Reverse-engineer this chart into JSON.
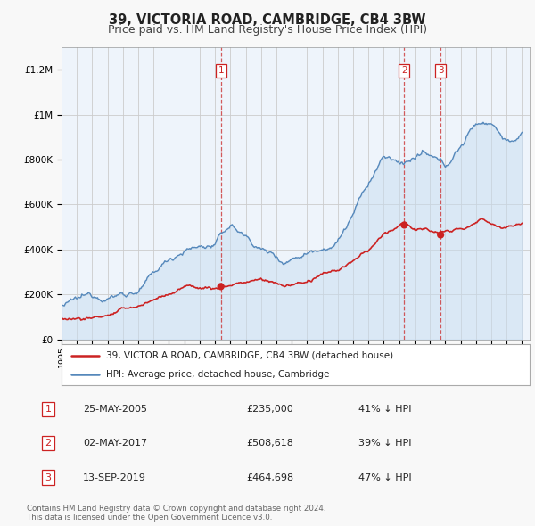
{
  "title": "39, VICTORIA ROAD, CAMBRIDGE, CB4 3BW",
  "subtitle": "Price paid vs. HM Land Registry's House Price Index (HPI)",
  "title_fontsize": 10.5,
  "subtitle_fontsize": 9,
  "background_color": "#f8f8f8",
  "plot_bg_color": "#eef4fb",
  "grid_color": "#cccccc",
  "hpi_color": "#5588bb",
  "hpi_fill_color": "#c8ddf0",
  "price_color": "#cc2222",
  "marker_color": "#cc2222",
  "legend_label_price": "39, VICTORIA ROAD, CAMBRIDGE, CB4 3BW (detached house)",
  "legend_label_hpi": "HPI: Average price, detached house, Cambridge",
  "table_rows": [
    {
      "num": "1",
      "date": "25-MAY-2005",
      "price": "£235,000",
      "hpi": "41% ↓ HPI"
    },
    {
      "num": "2",
      "date": "02-MAY-2017",
      "price": "£508,618",
      "hpi": "39% ↓ HPI"
    },
    {
      "num": "3",
      "date": "13-SEP-2019",
      "price": "£464,698",
      "hpi": "47% ↓ HPI"
    }
  ],
  "copyright_text": "Contains HM Land Registry data © Crown copyright and database right 2024.\nThis data is licensed under the Open Government Licence v3.0.",
  "vline_dates": [
    2005.38,
    2017.33,
    2019.7
  ],
  "sale_dates": [
    2005.38,
    2017.33,
    2019.7
  ],
  "sale_prices": [
    235000,
    508618,
    464698
  ],
  "ylim": [
    0,
    1300000
  ],
  "xlim_start": 1995.0,
  "xlim_end": 2025.5,
  "yticks": [
    0,
    200000,
    400000,
    600000,
    800000,
    1000000,
    1200000
  ],
  "ytick_labels": [
    "£0",
    "£200K",
    "£400K",
    "£600K",
    "£800K",
    "£1M",
    "£1.2M"
  ],
  "xtick_years": [
    1995,
    1996,
    1997,
    1998,
    1999,
    2000,
    2001,
    2002,
    2003,
    2004,
    2005,
    2006,
    2007,
    2008,
    2009,
    2010,
    2011,
    2012,
    2013,
    2014,
    2015,
    2016,
    2017,
    2018,
    2019,
    2020,
    2021,
    2022,
    2023,
    2024,
    2025
  ]
}
